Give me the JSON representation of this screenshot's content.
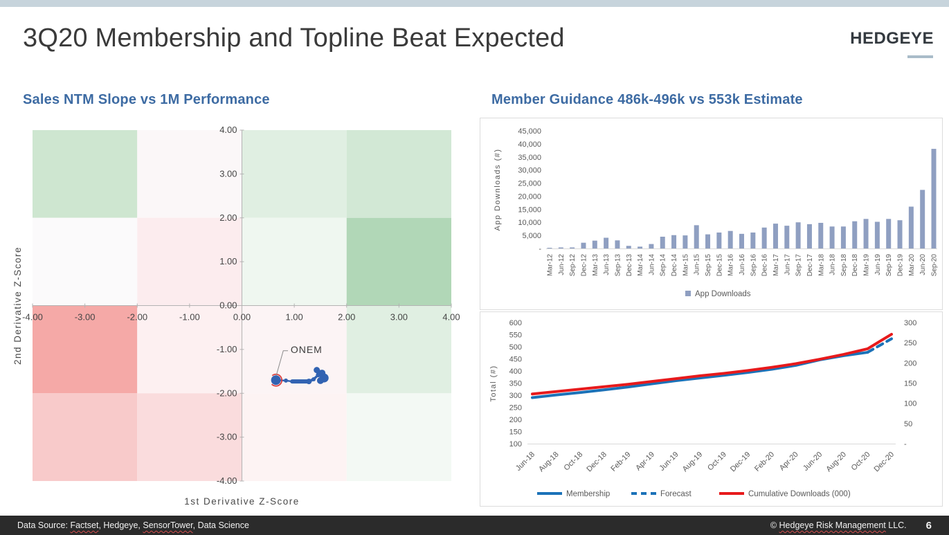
{
  "header": {
    "title": "3Q20 Membership and Topline Beat Expected",
    "logo": "HEDGEYE"
  },
  "footer": {
    "left_segments": [
      {
        "t": "Data Source: "
      },
      {
        "t": "Factset",
        "e": true
      },
      {
        "t": ", Hedgeye, "
      },
      {
        "t": "SensorTower",
        "e": true
      },
      {
        "t": ", Data Science"
      }
    ],
    "right_segments": [
      {
        "t": "© "
      },
      {
        "t": "Hedgeye Risk Management",
        "e": true
      },
      {
        "t": " LLC."
      }
    ],
    "page_number": "6"
  },
  "colors": {
    "top_strip": "#c7d4dc",
    "section_title_blue": "#3d6ba3",
    "bar_blue": "#8f9fc1",
    "membership_blue": "#1b72b8",
    "download_red": "#e71a1c",
    "onem_blue": "#3263b2",
    "onem_ring_red": "#d94040",
    "axis_gray": "#b3b3b3",
    "tick_text": "#595959",
    "footer_bg": "#2b2b2b"
  },
  "chart_data": [
    {
      "type": "scatter",
      "title": "Sales NTM Slope vs 1M Performance",
      "xlabel": "1st Derivative Z-Score",
      "ylabel": "2nd Derivative Z-Score",
      "xlim": [
        -4,
        4
      ],
      "ylim": [
        -4,
        4
      ],
      "x_ticks": [
        "-4.00",
        "-3.00",
        "-2.00",
        "-1.00",
        "0.00",
        "1.00",
        "2.00",
        "3.00",
        "4.00"
      ],
      "y_ticks": [
        "4.00",
        "3.00",
        "2.00",
        "1.00",
        "0.00",
        "-1.00",
        "-2.00",
        "-3.00",
        "-4.00"
      ],
      "grid": false,
      "cell_colors": [
        [
          "#cee6d0",
          "#fbf7f8",
          "#e0efe2",
          "#d2e8d5"
        ],
        [
          "#fbfafb",
          "#fcecee",
          "#eff7f0",
          "#b1d7b7"
        ],
        [
          "#f5a9a7",
          "#fdf0f1",
          "#fcf4f5",
          "#e0efe2"
        ],
        [
          "#f8caca",
          "#fadcdd",
          "#fdf3f3",
          "#f3f9f4"
        ]
      ],
      "series_label": "ONEM",
      "points": [
        {
          "x": 0.65,
          "y": -1.7,
          "r": 7,
          "ring": true
        },
        {
          "x": 0.84,
          "y": -1.71,
          "r": 3
        },
        {
          "x": 0.96,
          "y": -1.73,
          "r": 2.5
        },
        {
          "x": 1.28,
          "y": -1.73,
          "r": 4
        },
        {
          "x": 1.37,
          "y": -1.68,
          "r": 3
        },
        {
          "x": 1.46,
          "y": -1.58,
          "r": 3.5
        },
        {
          "x": 1.43,
          "y": -1.47,
          "r": 4.5
        },
        {
          "x": 1.53,
          "y": -1.54,
          "r": 5
        },
        {
          "x": 1.57,
          "y": -1.65,
          "r": 6.5
        },
        {
          "x": 1.5,
          "y": -1.71,
          "r": 5
        }
      ],
      "segment_widths": [
        2.5,
        2.5,
        6,
        4,
        3.5,
        4,
        5,
        6,
        6
      ],
      "label_pos": {
        "x": 0.93,
        "y": -1.02
      },
      "label_line": [
        [
          0.88,
          -1.03
        ],
        [
          0.79,
          -1.03
        ],
        [
          0.655,
          -1.6
        ]
      ]
    },
    {
      "type": "bar",
      "title": "Member Guidance 486k-496k vs 553k Estimate",
      "ylabel": "App Downloads (#)",
      "legend": "App Downloads",
      "legend_position": "bottom",
      "ylim": [
        0,
        45000
      ],
      "grid": false,
      "y_ticks": [
        {
          "label": "45,000",
          "value": 45000
        },
        {
          "label": "40,000",
          "value": 40000
        },
        {
          "label": "35,000",
          "value": 35000
        },
        {
          "label": "30,000",
          "value": 30000
        },
        {
          "label": "25,000",
          "value": 25000
        },
        {
          "label": "20,000",
          "value": 20000
        },
        {
          "label": "15,000",
          "value": 15000
        },
        {
          "label": "10,000",
          "value": 10000
        },
        {
          "label": "5,000",
          "value": 5000
        },
        {
          "label": "-",
          "value": 0
        }
      ],
      "categories": [
        "Mar-12",
        "Jun-12",
        "Sep-12",
        "Dec-12",
        "Mar-13",
        "Jun-13",
        "Sep-13",
        "Dec-13",
        "Mar-14",
        "Jun-14",
        "Sep-14",
        "Dec-14",
        "Mar-15",
        "Jun-15",
        "Sep-15",
        "Dec-15",
        "Mar-16",
        "Jun-16",
        "Sep-16",
        "Dec-16",
        "Mar-17",
        "Jun-17",
        "Sep-17",
        "Dec-17",
        "Mar-18",
        "Jun-18",
        "Sep-18",
        "Dec-18",
        "Mar-19",
        "Jun-19",
        "Sep-19",
        "Dec-19",
        "Mar-20",
        "Jun-20",
        "Sep-20"
      ],
      "values": [
        100,
        400,
        400,
        2200,
        3000,
        4100,
        3100,
        1000,
        700,
        1700,
        4500,
        5100,
        5000,
        8900,
        5400,
        6100,
        6700,
        5600,
        6100,
        8000,
        9500,
        8700,
        10000,
        9300,
        9800,
        8400,
        8400,
        10400,
        11300,
        10200,
        11300,
        10800,
        16000,
        22400,
        38100
      ]
    },
    {
      "type": "line",
      "ylabel_left": "Total (#)",
      "legend_position": "bottom",
      "grid": false,
      "left_axis": {
        "range": [
          100,
          600
        ],
        "ticks": [
          {
            "label": "600",
            "value": 600
          },
          {
            "label": "550",
            "value": 550
          },
          {
            "label": "500",
            "value": 500
          },
          {
            "label": "450",
            "value": 450
          },
          {
            "label": "400",
            "value": 400
          },
          {
            "label": "350",
            "value": 350
          },
          {
            "label": "300",
            "value": 300
          },
          {
            "label": "250",
            "value": 250
          },
          {
            "label": "200",
            "value": 200
          },
          {
            "label": "150",
            "value": 150
          },
          {
            "label": "100",
            "value": 100
          }
        ]
      },
      "right_axis": {
        "range": [
          0,
          300
        ],
        "ticks": [
          {
            "label": "300",
            "value": 300
          },
          {
            "label": "250",
            "value": 250
          },
          {
            "label": "200",
            "value": 200
          },
          {
            "label": "150",
            "value": 150
          },
          {
            "label": "100",
            "value": 100
          },
          {
            "label": "50",
            "value": 50
          },
          {
            "label": "-",
            "value": 0
          }
        ]
      },
      "x": [
        "Jun-18",
        "Aug-18",
        "Oct-18",
        "Dec-18",
        "Feb-19",
        "Apr-19",
        "Jun-19",
        "Aug-19",
        "Oct-19",
        "Dec-19",
        "Feb-20",
        "Apr-20",
        "Jun-20",
        "Aug-20",
        "Oct-20",
        "Dec-20"
      ],
      "series": [
        {
          "name": "Membership",
          "axis": "left",
          "style": "solid",
          "color": "#1b72b8",
          "values": [
            290,
            301,
            311,
            322,
            334,
            347,
            360,
            371,
            382,
            394,
            407,
            423,
            446,
            463,
            477,
            null
          ]
        },
        {
          "name": "Forecast",
          "axis": "left",
          "style": "dashed",
          "color": "#1b72b8",
          "values": [
            null,
            null,
            null,
            null,
            null,
            null,
            null,
            null,
            null,
            null,
            null,
            null,
            null,
            null,
            477,
            533
          ]
        },
        {
          "name": "Cumulative Downloads (000)",
          "axis": "right",
          "style": "solid",
          "color": "#e71a1c",
          "values": [
            123,
            129,
            135,
            141,
            147,
            154,
            161,
            168,
            174,
            181,
            189,
            198,
            209,
            221,
            235,
            271
          ]
        }
      ]
    }
  ]
}
